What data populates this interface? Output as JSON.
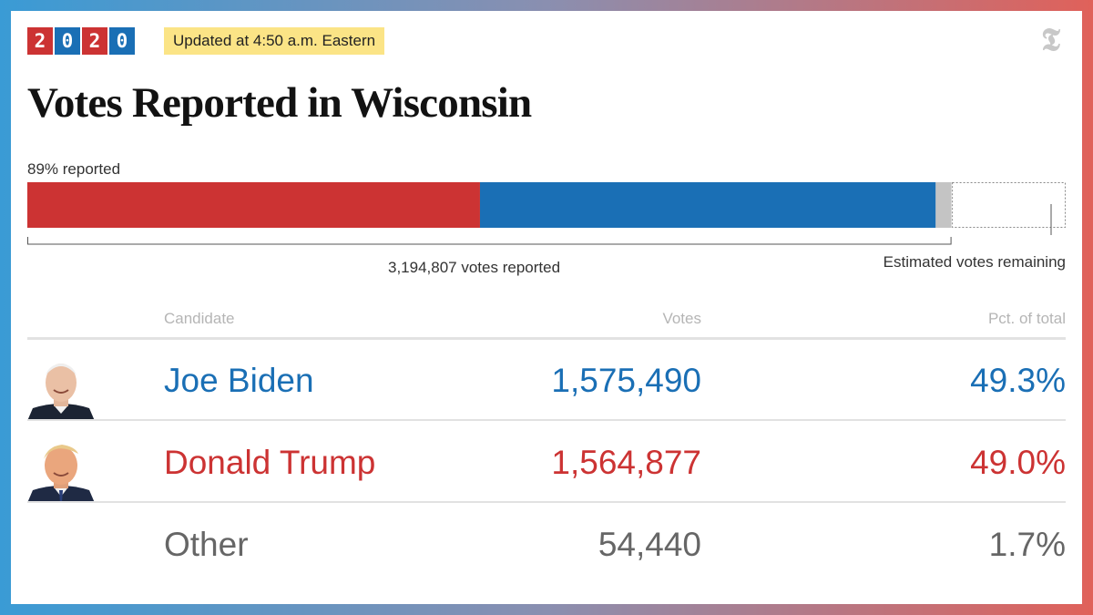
{
  "header": {
    "year_digits": [
      "2",
      "0",
      "2",
      "0"
    ],
    "year_colors": [
      "#cc3333",
      "#1a6fb5",
      "#cc3333",
      "#1a6fb5"
    ],
    "updated": "Updated at 4:50 a.m. Eastern",
    "title": "Votes Reported in Wisconsin"
  },
  "chart_data": {
    "type": "bar",
    "stacked": true,
    "orientation": "horizontal",
    "reported_label": "89% reported",
    "reported_fraction": 0.89,
    "total_reported_label": "3,194,807 votes reported",
    "remaining_label": "Estimated votes remaining",
    "series": [
      {
        "name": "Donald Trump",
        "value": 1564877,
        "color": "#cc3333"
      },
      {
        "name": "Joe Biden",
        "value": 1575490,
        "color": "#1a6fb5"
      },
      {
        "name": "Other",
        "value": 54440,
        "color": "#c4c4c4"
      }
    ]
  },
  "table": {
    "headers": {
      "candidate": "Candidate",
      "votes": "Votes",
      "pct": "Pct. of total"
    },
    "rows": [
      {
        "name": "Joe Biden",
        "votes": "1,575,490",
        "pct": "49.3%",
        "color": "#1a6fb5",
        "photo": true
      },
      {
        "name": "Donald Trump",
        "votes": "1,564,877",
        "pct": "49.0%",
        "color": "#cc3333",
        "photo": true
      },
      {
        "name": "Other",
        "votes": "54,440",
        "pct": "1.7%",
        "color": "#666666",
        "photo": false
      }
    ]
  }
}
